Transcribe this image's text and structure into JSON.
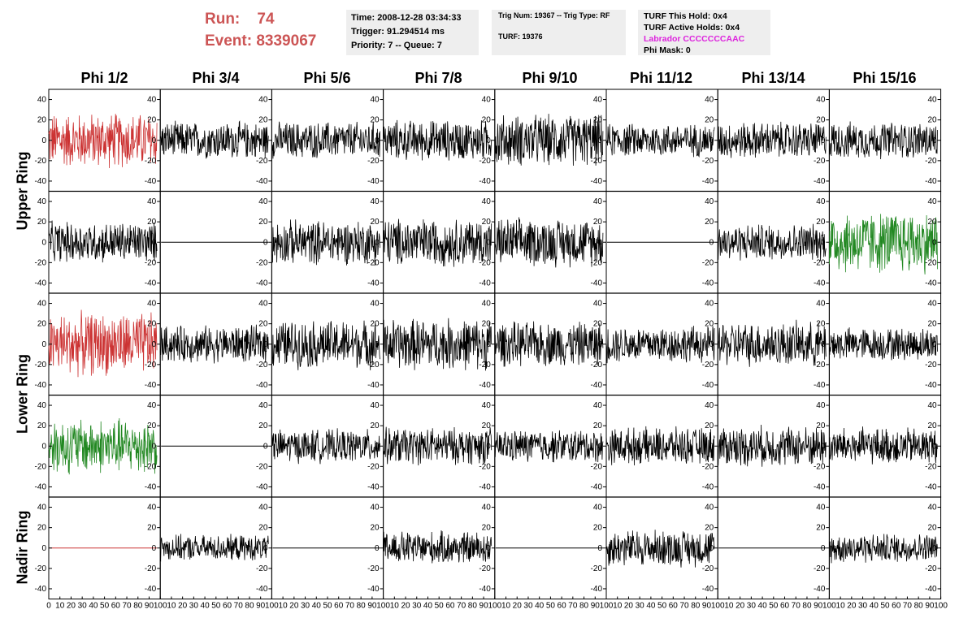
{
  "header": {
    "run_label": "Run:",
    "run_value": "74",
    "event_label": "Event:",
    "event_value": "8339067"
  },
  "info_boxes": {
    "time": "Time: 2008-12-28 03:34:33",
    "trigger": "Trigger: 91.294514 ms",
    "priority": "Priority: 7 -- Queue: 7",
    "trig_num": "Trig Num: 19367 -- Trig Type: RF",
    "turf": "TURF: 19376",
    "turf_hold": "TURF This Hold: 0x4",
    "turf_active": "TURF Active Holds: 0x4",
    "labrador": "Labrador CCCCCCCAAC",
    "phi_mask": "Phi Mask: 0"
  },
  "colors": {
    "header_red": "#cc5555",
    "trace_black": "#000000",
    "trace_red": "#cc3333",
    "trace_green": "#228822",
    "labrador_magenta": "#dd22dd",
    "info_bg": "#eeeeee"
  },
  "column_labels": [
    "Phi 1/2",
    "Phi 3/4",
    "Phi 5/6",
    "Phi 7/8",
    "Phi 9/10",
    "Phi 11/12",
    "Phi 13/14",
    "Phi 15/16"
  ],
  "row_labels": [
    "Upper Ring",
    "Lower Ring",
    "Nadir Ring"
  ],
  "chart_data": {
    "type": "line",
    "title": "",
    "grid": false,
    "xlim": [
      0,
      100
    ],
    "ylim": [
      -50,
      50
    ],
    "y_ticks": [
      -40,
      -20,
      0,
      20,
      40
    ],
    "x_tick_labels": [
      "0",
      "10",
      "20",
      "30",
      "40",
      "50",
      "60",
      "70",
      "80",
      "90",
      "100"
    ],
    "panel_rows": 5,
    "panel_cols": 8,
    "ring_groups": [
      {
        "label": "Upper Ring",
        "panel_rows": [
          0,
          1
        ]
      },
      {
        "label": "Lower Ring",
        "panel_rows": [
          2,
          3
        ]
      },
      {
        "label": "Nadir Ring",
        "panel_rows": [
          4
        ]
      }
    ],
    "panels": [
      [
        "red",
        "black",
        "black",
        "black",
        "black",
        "black",
        "black",
        "black"
      ],
      [
        "black",
        "flat",
        "black",
        "black",
        "black",
        "flat",
        "black",
        "green"
      ],
      [
        "red",
        "black",
        "black",
        "black",
        "black",
        "black",
        "black",
        "black"
      ],
      [
        "green",
        "flat",
        "black",
        "black",
        "black",
        "black",
        "black",
        "black"
      ],
      [
        "flat-red",
        "black",
        "flat",
        "black",
        "flat",
        "black",
        "flat",
        "black"
      ]
    ],
    "panel_amplitudes": [
      [
        30,
        20,
        20,
        22,
        28,
        18,
        20,
        20
      ],
      [
        22,
        0,
        24,
        26,
        26,
        0,
        20,
        34
      ],
      [
        34,
        20,
        26,
        28,
        24,
        20,
        24,
        18
      ],
      [
        30,
        0,
        18,
        20,
        18,
        20,
        22,
        20
      ],
      [
        0,
        14,
        0,
        18,
        0,
        20,
        0,
        16
      ]
    ],
    "trace_duration": 97,
    "samples_per_trace": 260
  }
}
